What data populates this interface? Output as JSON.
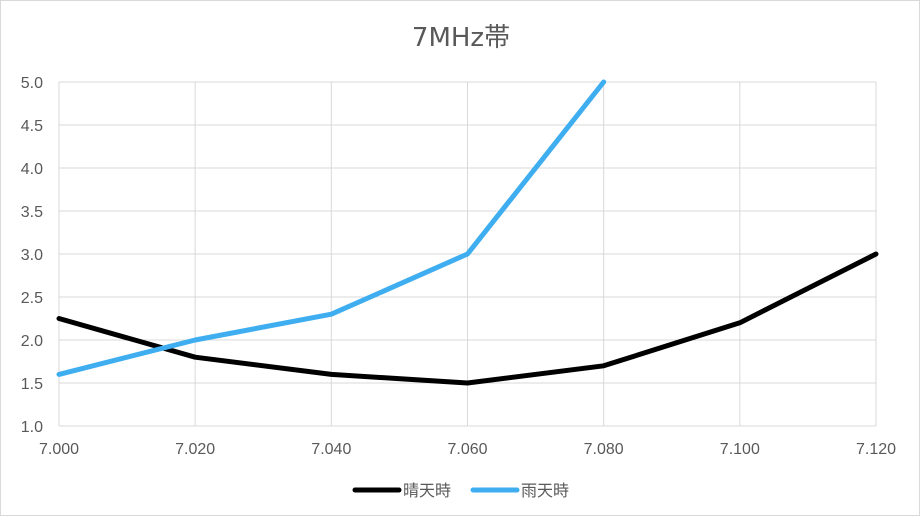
{
  "chart_data": {
    "type": "line",
    "title": "7MHz帯",
    "x": [
      7.0,
      7.02,
      7.04,
      7.06,
      7.08,
      7.1,
      7.12
    ],
    "x_tick_labels": [
      "7.000",
      "7.020",
      "7.040",
      "7.060",
      "7.080",
      "7.100",
      "7.120"
    ],
    "y_tick_labels": [
      "1.0",
      "1.5",
      "2.0",
      "2.5",
      "3.0",
      "3.5",
      "4.0",
      "4.5",
      "5.0"
    ],
    "xlim": [
      7.0,
      7.12
    ],
    "ylim": [
      1.0,
      5.0
    ],
    "grid": true,
    "legend_position": "bottom",
    "series": [
      {
        "name": "晴天時",
        "color": "#000000",
        "x": [
          7.0,
          7.02,
          7.04,
          7.06,
          7.08,
          7.1,
          7.12
        ],
        "values": [
          2.25,
          1.8,
          1.6,
          1.5,
          1.7,
          2.2,
          3.0
        ]
      },
      {
        "name": "雨天時",
        "color": "#3FAEF0",
        "x": [
          7.0,
          7.02,
          7.04,
          7.06,
          7.08
        ],
        "values": [
          1.6,
          2.0,
          2.3,
          3.0,
          5.0
        ]
      }
    ]
  }
}
